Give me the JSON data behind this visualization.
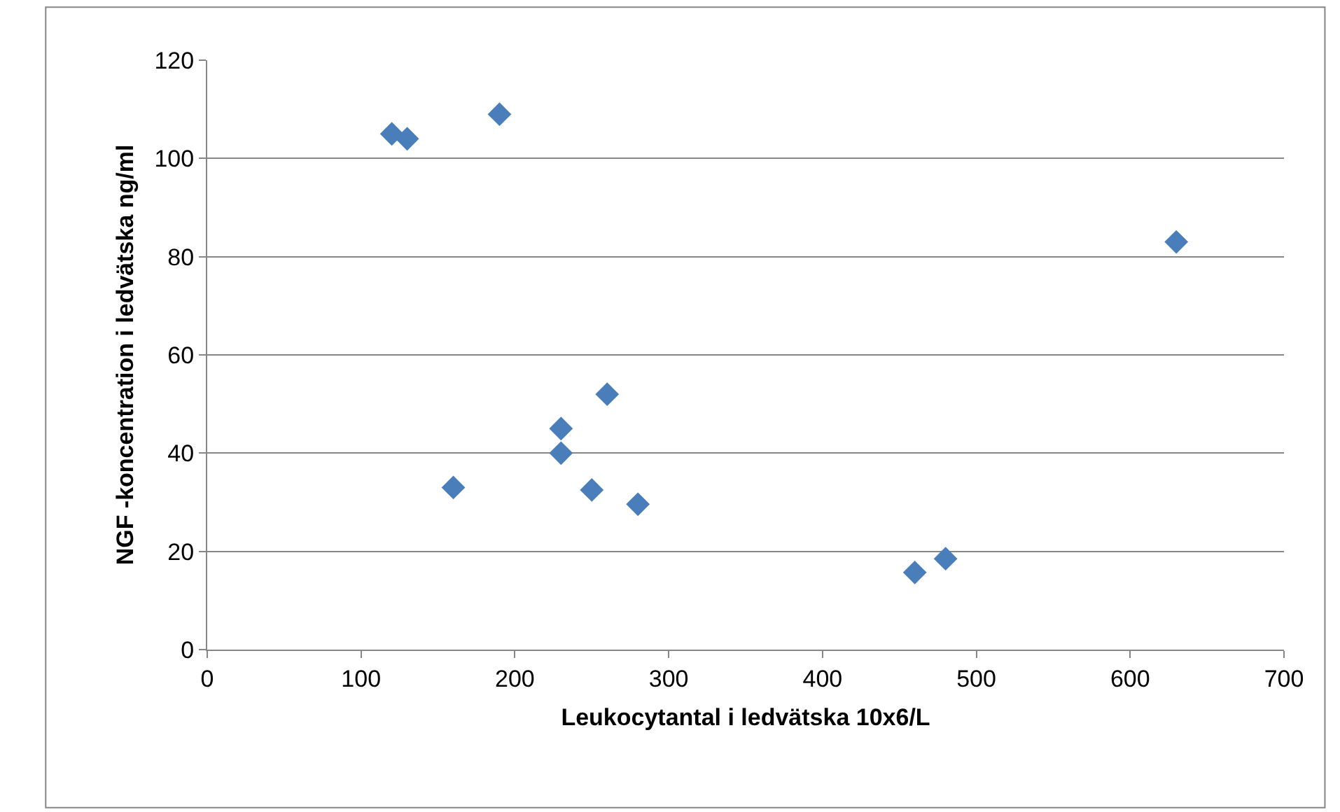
{
  "chart_data": {
    "type": "scatter",
    "xlabel": "Leukocytantal i ledvätska 10x6/L",
    "ylabel": "NGF -koncentration i ledvätska ng/ml",
    "x": [
      120,
      130,
      190,
      630,
      260,
      230,
      230,
      160,
      250,
      280,
      460,
      480
    ],
    "series": [
      {
        "color": "#4a7ebb",
        "values": [
          105,
          104,
          109,
          83,
          52,
          45,
          40,
          33,
          32.5,
          29.6,
          15.7,
          18.5
        ]
      }
    ],
    "xlim": [
      0,
      700
    ],
    "xticks": [
      0,
      100,
      200,
      300,
      400,
      500,
      600,
      700
    ],
    "ylim": [
      0,
      120
    ],
    "yticks": [
      0,
      20,
      40,
      60,
      80,
      100,
      120
    ],
    "grid": "y",
    "marker": "diamond"
  }
}
